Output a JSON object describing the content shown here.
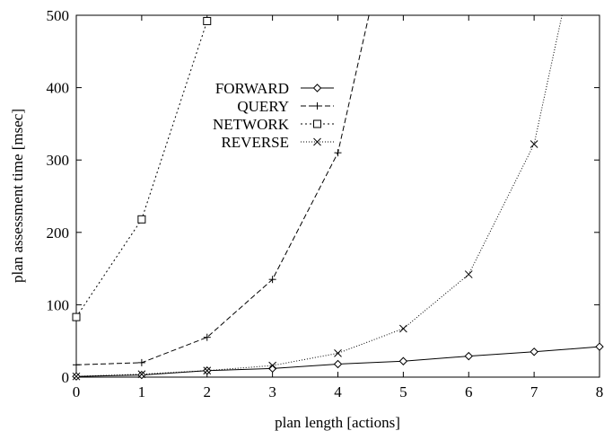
{
  "chart_data": {
    "type": "line",
    "title": "",
    "xlabel": "plan length [actions]",
    "ylabel": "plan assessment time [msec]",
    "xlim": [
      0,
      8
    ],
    "ylim": [
      0,
      500
    ],
    "xticks": [
      0,
      1,
      2,
      3,
      4,
      5,
      6,
      7,
      8
    ],
    "yticks": [
      0,
      100,
      200,
      300,
      400,
      500
    ],
    "grid": false,
    "legend_position": "top-left-center",
    "series": [
      {
        "name": "FORWARD",
        "marker": "diamond",
        "dash": "solid",
        "x": [
          0,
          1,
          2,
          3,
          4,
          5,
          6,
          7,
          8
        ],
        "y": [
          1,
          3,
          9,
          12,
          18,
          22,
          29,
          35,
          42
        ]
      },
      {
        "name": "QUERY",
        "marker": "plus",
        "dash": "dashed",
        "x": [
          0,
          1,
          2,
          3,
          4,
          4.5
        ],
        "y": [
          17,
          20,
          55,
          135,
          310,
          510
        ]
      },
      {
        "name": "NETWORK",
        "marker": "square",
        "dash": "dotted",
        "x": [
          0,
          1,
          2
        ],
        "y": [
          83,
          218,
          492
        ]
      },
      {
        "name": "REVERSE",
        "marker": "cross",
        "dash": "fine-dotted",
        "x": [
          0,
          1,
          2,
          3,
          4,
          5,
          6,
          7,
          7.45
        ],
        "y": [
          1,
          4,
          9,
          16,
          33,
          67,
          142,
          322,
          510
        ]
      }
    ]
  }
}
